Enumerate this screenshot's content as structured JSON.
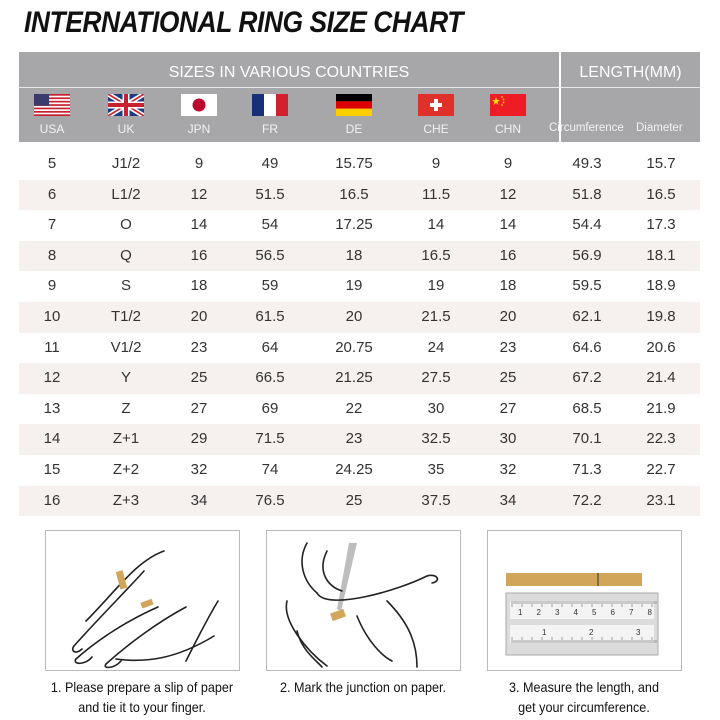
{
  "title": "INTERNATIONAL RING SIZE CHART",
  "header": {
    "sizes_label": "SIZES IN VARIOUS COUNTRIES",
    "length_label": "LENGTH(MM)",
    "countries": [
      {
        "code": "USA",
        "flag": "usa-flag"
      },
      {
        "code": "UK",
        "flag": "uk-flag"
      },
      {
        "code": "JPN",
        "flag": "japan-flag"
      },
      {
        "code": "FR",
        "flag": "france-flag"
      },
      {
        "code": "DE",
        "flag": "germany-flag"
      },
      {
        "code": "CHE",
        "flag": "switzerland-flag"
      },
      {
        "code": "CHN",
        "flag": "china-flag"
      }
    ],
    "length_columns": [
      "Circumference",
      "Diameter"
    ]
  },
  "rows": [
    [
      "5",
      "J1/2",
      "9",
      "49",
      "15.75",
      "9",
      "9",
      "49.3",
      "15.7"
    ],
    [
      "6",
      "L1/2",
      "12",
      "51.5",
      "16.5",
      "11.5",
      "12",
      "51.8",
      "16.5"
    ],
    [
      "7",
      "O",
      "14",
      "54",
      "17.25",
      "14",
      "14",
      "54.4",
      "17.3"
    ],
    [
      "8",
      "Q",
      "16",
      "56.5",
      "18",
      "16.5",
      "16",
      "56.9",
      "18.1"
    ],
    [
      "9",
      "S",
      "18",
      "59",
      "19",
      "19",
      "18",
      "59.5",
      "18.9"
    ],
    [
      "10",
      "T1/2",
      "20",
      "61.5",
      "20",
      "21.5",
      "20",
      "62.1",
      "19.8"
    ],
    [
      "11",
      "V1/2",
      "23",
      "64",
      "20.75",
      "24",
      "23",
      "64.6",
      "20.6"
    ],
    [
      "12",
      "Y",
      "25",
      "66.5",
      "21.25",
      "27.5",
      "25",
      "67.2",
      "21.4"
    ],
    [
      "13",
      "Z",
      "27",
      "69",
      "22",
      "30",
      "27",
      "68.5",
      "21.9"
    ],
    [
      "14",
      "Z+1",
      "29",
      "71.5",
      "23",
      "32.5",
      "30",
      "70.1",
      "22.3"
    ],
    [
      "15",
      "Z+2",
      "32",
      "74",
      "24.25",
      "35",
      "32",
      "71.3",
      "22.7"
    ],
    [
      "16",
      "Z+3",
      "34",
      "76.5",
      "25",
      "37.5",
      "34",
      "72.2",
      "23.1"
    ]
  ],
  "steps": [
    {
      "line1": "1. Please prepare a slip of paper",
      "line2": "and tie it to your finger."
    },
    {
      "line1": "2. Mark the junction on paper.",
      "line2": ""
    },
    {
      "line1": "3. Measure the length, and",
      "line2": "get your circumference."
    }
  ],
  "ruler": {
    "top_marks": [
      "1",
      "2",
      "3",
      "4",
      "5",
      "6",
      "7",
      "8"
    ],
    "bottom_marks": [
      "1",
      "2",
      "3"
    ]
  },
  "colors": {
    "header_bg": "#a7a7a9",
    "stripe": "#f6f1ef",
    "paper_strip": "#d2a65a"
  }
}
